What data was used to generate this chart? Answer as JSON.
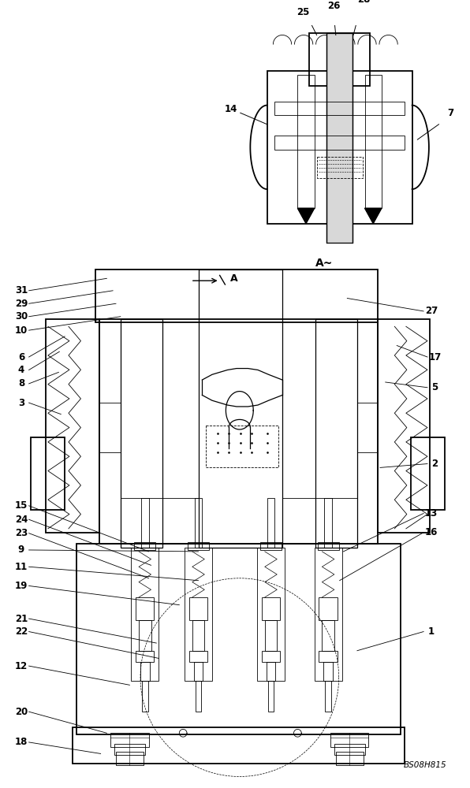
{
  "bg_color": "#ffffff",
  "line_color": "#000000",
  "figure_width": 5.96,
  "figure_height": 10.0,
  "dpi": 100,
  "watermark": "BS08H815"
}
